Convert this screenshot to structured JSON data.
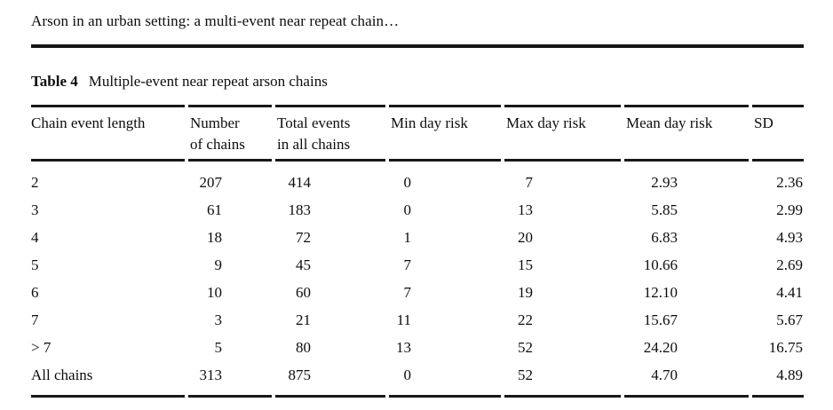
{
  "page": {
    "running_head": "Arson in an urban setting: a multi-event near repeat chain…",
    "ink_color": "#0d0d0d",
    "rule_color": "#181818"
  },
  "caption": {
    "label": "Table 4",
    "text": "Multiple-event near repeat arson chains"
  },
  "table": {
    "columns": [
      {
        "label": "Chain event length"
      },
      {
        "label": "Number\nof chains"
      },
      {
        "label": "Total events\nin all chains"
      },
      {
        "label": "Min day risk"
      },
      {
        "label": "Max day risk"
      },
      {
        "label": "Mean day risk"
      },
      {
        "label": "SD"
      }
    ],
    "rows": [
      [
        "2",
        "207",
        "414",
        "0",
        "7",
        "2.93",
        "2.36"
      ],
      [
        "3",
        "61",
        "183",
        "0",
        "13",
        "5.85",
        "2.99"
      ],
      [
        "4",
        "18",
        "72",
        "1",
        "20",
        "6.83",
        "4.93"
      ],
      [
        "5",
        "9",
        "45",
        "7",
        "15",
        "10.66",
        "2.69"
      ],
      [
        "6",
        "10",
        "60",
        "7",
        "19",
        "12.10",
        "4.41"
      ],
      [
        "7",
        "3",
        "21",
        "11",
        "22",
        "15.67",
        "5.67"
      ],
      [
        "> 7",
        "5",
        "80",
        "13",
        "52",
        "24.20",
        "16.75"
      ],
      [
        "All chains",
        "313",
        "875",
        "0",
        "52",
        "4.70",
        "4.89"
      ]
    ]
  }
}
